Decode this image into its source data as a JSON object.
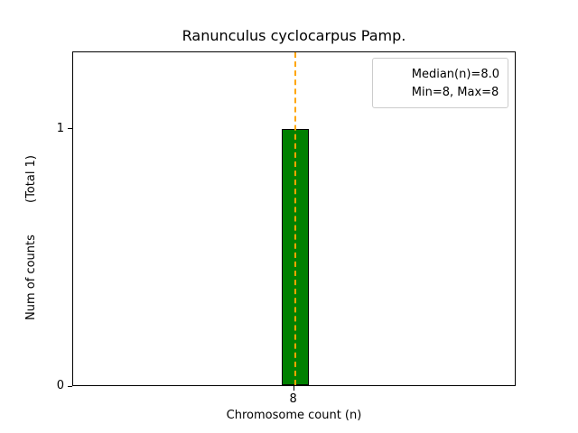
{
  "chart_data": {
    "type": "bar",
    "title": "Ranunculus cyclocarpus Pamp.",
    "xlabel": "Chromosome count (n)",
    "ylabel": "Num of counts",
    "ylabel_total": "(Total 1)",
    "categories": [
      "8"
    ],
    "values": [
      1
    ],
    "ylim": [
      0,
      1.3
    ],
    "yticks": [
      0,
      1
    ],
    "ytick_labels": [
      "0",
      "1"
    ],
    "xtick_labels": [
      "8"
    ],
    "median_x": 8,
    "median_value": 8.0,
    "min": 8,
    "max": 8,
    "bar_color": "#008000",
    "bar_edge_color": "#000000",
    "median_line_color": "#FFA500",
    "legend": [
      {
        "label": "Median(n)=8.0",
        "handle": "orange-dashed-line"
      },
      {
        "label": "Min=8, Max=8",
        "handle": "none"
      }
    ],
    "grid": false,
    "legend_position": "upper right"
  }
}
